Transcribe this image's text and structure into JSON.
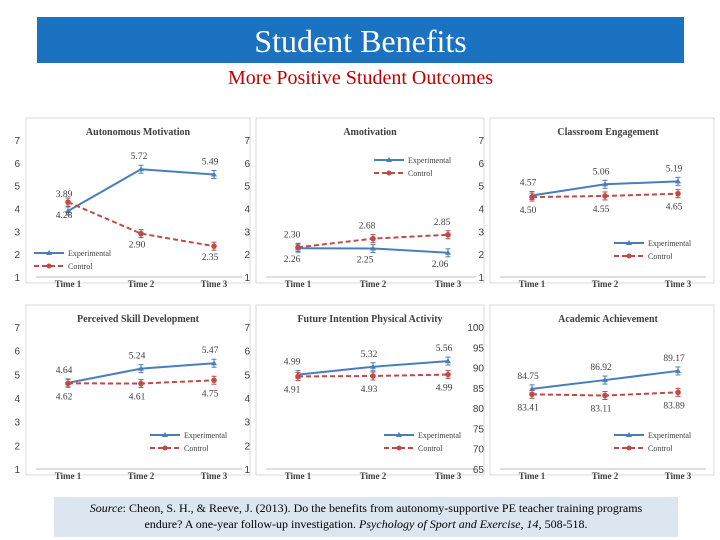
{
  "header": {
    "title": "Student Benefits",
    "subtitle": "More Positive Student Outcomes"
  },
  "source": {
    "label": "Source",
    "text_1": ": Cheon, S. H., & Reeve, J. (2013).  Do the benefits from autonomy-supportive PE teacher training programs",
    "text_2": "endure? A one-year follow-up investigation.  ",
    "journal": "Psychology of Sport and Exercise, 14,",
    "pages": " 508-518."
  },
  "colors": {
    "header_bg": "#1b72c0",
    "title": "#ffffff",
    "subtitle": "#c00000",
    "experimental": "#4a7ebb",
    "control": "#be4b48",
    "source_bg": "#dce6f0"
  },
  "chart_data": [
    {
      "type": "line",
      "title": "Autonomous Motivation",
      "categories": [
        "Time 1",
        "Time 2",
        "Time 3"
      ],
      "ylim": [
        1,
        7
      ],
      "yticks": [
        "1",
        "2",
        "3",
        "4",
        "5",
        "6",
        "7"
      ],
      "legend": "bottom-left",
      "series": [
        {
          "name": "Experimental",
          "values": [
            3.89,
            5.72,
            5.49
          ],
          "labels": [
            "3.89",
            "5.72",
            "5.49"
          ]
        },
        {
          "name": "Control",
          "values": [
            4.28,
            2.9,
            2.35
          ],
          "labels": [
            "4.28",
            "2.90",
            "2.35"
          ]
        }
      ]
    },
    {
      "type": "line",
      "title": "Amotivation",
      "categories": [
        "Time 1",
        "Time 2",
        "Time 3"
      ],
      "ylim": [
        1,
        7
      ],
      "yticks": [
        "1",
        "2",
        "3",
        "4",
        "5",
        "6",
        "7"
      ],
      "legend": "top-right",
      "series": [
        {
          "name": "Experimental",
          "values": [
            2.26,
            2.25,
            2.06
          ],
          "labels": [
            "2.26",
            "2.25",
            "2.06"
          ]
        },
        {
          "name": "Control",
          "values": [
            2.3,
            2.68,
            2.85
          ],
          "labels": [
            "2.30",
            "2.68",
            "2.85"
          ]
        }
      ]
    },
    {
      "type": "line",
      "title": "Classroom Engagement",
      "categories": [
        "Time 1",
        "Time 2",
        "Time 3"
      ],
      "ylim": [
        1,
        7
      ],
      "yticks": [
        "1",
        "2",
        "3",
        "4",
        "5",
        "6",
        "7"
      ],
      "legend": "bottom-right",
      "series": [
        {
          "name": "Experimental",
          "values": [
            4.57,
            5.06,
            5.19
          ],
          "labels": [
            "4.57",
            "5.06",
            "5.19"
          ]
        },
        {
          "name": "Control",
          "values": [
            4.5,
            4.55,
            4.65
          ],
          "labels": [
            "4.50",
            "4.55",
            "4.65"
          ]
        }
      ]
    },
    {
      "type": "line",
      "title": "Perceived Skill Development",
      "categories": [
        "Time 1",
        "Time 2",
        "Time 3"
      ],
      "ylim": [
        1,
        7
      ],
      "yticks": [
        "1",
        "2",
        "3",
        "4",
        "5",
        "6",
        "7"
      ],
      "legend": "bottom-right",
      "series": [
        {
          "name": "Experimental",
          "values": [
            4.64,
            5.24,
            5.47
          ],
          "labels": [
            "4.64",
            "5.24",
            "5.47"
          ]
        },
        {
          "name": "Control",
          "values": [
            4.62,
            4.61,
            4.75
          ],
          "labels": [
            "4.62",
            "4.61",
            "4.75"
          ]
        }
      ]
    },
    {
      "type": "line",
      "title": "Future Intention Physical Activity",
      "categories": [
        "Time 1",
        "Time 2",
        "Time 3"
      ],
      "ylim": [
        1,
        7
      ],
      "yticks": [
        "1",
        "2",
        "3",
        "4",
        "5",
        "6",
        "7"
      ],
      "legend": "bottom-right",
      "series": [
        {
          "name": "Experimental",
          "values": [
            4.99,
            5.32,
            5.56
          ],
          "labels": [
            "4.99",
            "5.32",
            "5.56"
          ]
        },
        {
          "name": "Control",
          "values": [
            4.91,
            4.93,
            4.99
          ],
          "labels": [
            "4.91",
            "4.93",
            "4.99"
          ]
        }
      ]
    },
    {
      "type": "line",
      "title": "Academic Achievement",
      "categories": [
        "Time 1",
        "Time 2",
        "Time 3"
      ],
      "ylim": [
        65,
        100
      ],
      "yticks": [
        "65",
        "70",
        "75",
        "80",
        "85",
        "90",
        "95",
        "100"
      ],
      "legend": "bottom-right",
      "series": [
        {
          "name": "Experimental",
          "values": [
            84.75,
            86.92,
            89.17
          ],
          "labels": [
            "84.75",
            "86.92",
            "89.17"
          ]
        },
        {
          "name": "Control",
          "values": [
            83.41,
            83.11,
            83.89
          ],
          "labels": [
            "83.41",
            "83.11",
            "83.89"
          ]
        }
      ]
    }
  ]
}
